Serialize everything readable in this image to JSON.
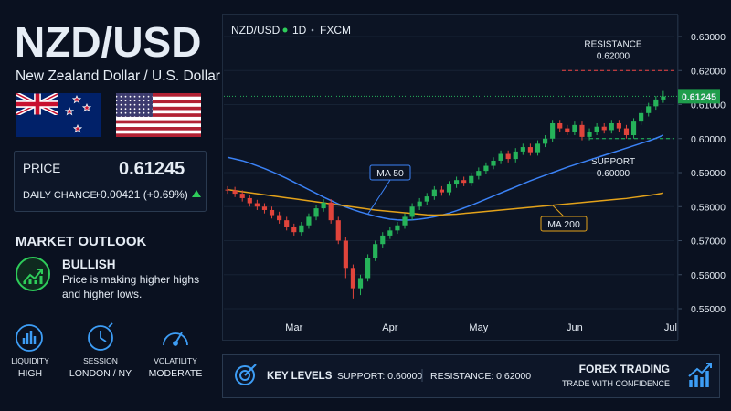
{
  "header": {
    "title": "NZD/USD",
    "subtitle": "New Zealand Dollar / U.S. Dollar"
  },
  "price_box": {
    "price_label": "PRICE",
    "change_label": "DAILY CHANGE",
    "change": "+0.00421 (+0.69%)"
  },
  "outlook": {
    "heading": "MARKET OUTLOOK",
    "status": "BULLISH",
    "description": [
      "Price is making higher highs",
      "and higher lows."
    ]
  },
  "indicators": [
    {
      "label": "LIQUIDITY",
      "value": "HIGH"
    },
    {
      "label": "SESSION",
      "value": "LONDON / NY"
    },
    {
      "label": "VOLATILITY",
      "value": "MODERATE"
    }
  ],
  "key_levels": {
    "heading": "KEY LEVELS",
    "support": "SUPPORT: 0.60000",
    "resistance": "RESISTANCE: 0.62000"
  },
  "brand": {
    "title": "FOREX TRADING",
    "tagline": "TRADE WITH CONFIDENCE"
  },
  "chart_data": {
    "type": "candlestick",
    "symbol": "NZD/USD",
    "interval": "1D",
    "source": "FXCM",
    "categories": [
      null,
      null,
      null,
      null,
      null,
      null,
      null,
      null,
      null,
      "Mar",
      null,
      null,
      null,
      null,
      null,
      null,
      null,
      null,
      null,
      null,
      null,
      null,
      "Apr",
      null,
      null,
      null,
      null,
      null,
      null,
      null,
      null,
      null,
      null,
      null,
      "May",
      null,
      null,
      null,
      null,
      null,
      null,
      null,
      null,
      null,
      null,
      null,
      null,
      "Jun",
      null,
      null,
      null,
      null,
      null,
      null,
      null,
      null,
      null,
      null,
      null,
      null,
      "Jul"
    ],
    "open": [
      0.585,
      0.5848,
      0.5838,
      0.5825,
      0.581,
      0.58,
      0.579,
      0.5775,
      0.576,
      0.574,
      0.5725,
      0.5745,
      0.577,
      0.5795,
      0.5812,
      0.576,
      0.57,
      0.562,
      0.556,
      0.559,
      0.565,
      0.569,
      0.5715,
      0.573,
      0.5745,
      0.577,
      0.58,
      0.5815,
      0.583,
      0.585,
      0.5842,
      0.5865,
      0.5878,
      0.587,
      0.589,
      0.5905,
      0.592,
      0.5935,
      0.5955,
      0.594,
      0.5962,
      0.5975,
      0.596,
      0.5985,
      0.6,
      0.6045,
      0.603,
      0.602,
      0.604,
      0.6005,
      0.602,
      0.6035,
      0.6025,
      0.6045,
      0.603,
      0.601,
      0.605,
      0.6075,
      0.6095,
      0.6115,
      null
    ],
    "high": [
      0.586,
      0.5858,
      0.5848,
      0.5835,
      0.582,
      0.581,
      0.58,
      0.5785,
      0.577,
      0.575,
      0.5755,
      0.578,
      0.5805,
      0.5822,
      0.5822,
      0.577,
      0.571,
      0.563,
      0.56,
      0.566,
      0.57,
      0.5725,
      0.574,
      0.5755,
      0.578,
      0.581,
      0.5825,
      0.584,
      0.586,
      0.586,
      0.5875,
      0.5888,
      0.5888,
      0.59,
      0.5915,
      0.593,
      0.5945,
      0.5965,
      0.5965,
      0.5972,
      0.5985,
      0.5985,
      0.5995,
      0.601,
      0.6055,
      0.6055,
      0.604,
      0.605,
      0.605,
      0.603,
      0.6045,
      0.6045,
      0.6055,
      0.6055,
      0.604,
      0.606,
      0.6085,
      0.6105,
      0.6125,
      0.614,
      null
    ],
    "low": [
      0.5838,
      0.5828,
      0.5815,
      0.58,
      0.579,
      0.578,
      0.5765,
      0.575,
      0.573,
      0.5715,
      0.5715,
      0.5735,
      0.576,
      0.5785,
      0.575,
      0.569,
      0.559,
      0.553,
      0.554,
      0.558,
      0.564,
      0.568,
      0.5705,
      0.572,
      0.5735,
      0.576,
      0.579,
      0.5805,
      0.582,
      0.5832,
      0.5832,
      0.5855,
      0.586,
      0.586,
      0.588,
      0.5895,
      0.591,
      0.5925,
      0.593,
      0.593,
      0.5952,
      0.595,
      0.595,
      0.5975,
      0.599,
      0.602,
      0.601,
      0.601,
      0.5995,
      0.5995,
      0.601,
      0.6015,
      0.6015,
      0.602,
      0.6,
      0.6,
      0.604,
      0.6065,
      0.6085,
      0.6105,
      null
    ],
    "close": [
      0.5848,
      0.5838,
      0.5825,
      0.581,
      0.58,
      0.579,
      0.5775,
      0.576,
      0.574,
      0.5725,
      0.5745,
      0.577,
      0.5795,
      0.5812,
      0.576,
      0.57,
      0.562,
      0.556,
      0.559,
      0.565,
      0.569,
      0.5715,
      0.573,
      0.5745,
      0.577,
      0.58,
      0.5815,
      0.583,
      0.585,
      0.5842,
      0.5865,
      0.5878,
      0.587,
      0.589,
      0.5905,
      0.592,
      0.5935,
      0.5955,
      0.594,
      0.5962,
      0.5975,
      0.596,
      0.5985,
      0.6,
      0.6045,
      0.603,
      0.602,
      0.604,
      0.6005,
      0.602,
      0.6035,
      0.6025,
      0.6045,
      0.603,
      0.601,
      0.605,
      0.6075,
      0.6095,
      0.6115,
      0.6124,
      null
    ],
    "up_color": "#26b35a",
    "down_color": "#e0443b",
    "series": [
      {
        "name": "MA 50",
        "color": "#3b82f6",
        "values": [
          0.5945,
          0.594,
          0.5935,
          0.5928,
          0.592,
          0.5912,
          0.5903,
          0.5893,
          0.5883,
          0.5872,
          0.5861,
          0.585,
          0.5839,
          0.5828,
          0.5818,
          0.5808,
          0.5799,
          0.5791,
          0.5784,
          0.5778,
          0.5772,
          0.5767,
          0.5763,
          0.5761,
          0.576,
          0.5761,
          0.5763,
          0.5766,
          0.577,
          0.5775,
          0.5781,
          0.5788,
          0.5796,
          0.5804,
          0.5813,
          0.5822,
          0.5831,
          0.584,
          0.5849,
          0.5858,
          0.5867,
          0.5876,
          0.5884,
          0.5892,
          0.59,
          0.5908,
          0.5916,
          0.5923,
          0.593,
          0.5937,
          0.5944,
          0.5951,
          0.5958,
          0.5965,
          0.5972,
          0.5979,
          0.5986,
          0.5993,
          0.6001,
          0.601,
          null
        ]
      },
      {
        "name": "MA 200",
        "color": "#e3a21a",
        "values": [
          0.585,
          0.5847,
          0.5844,
          0.5841,
          0.5838,
          0.5835,
          0.5832,
          0.5829,
          0.5826,
          0.5823,
          0.582,
          0.5817,
          0.5814,
          0.5811,
          0.5808,
          0.5805,
          0.5802,
          0.5799,
          0.5796,
          0.5793,
          0.579,
          0.5788,
          0.5786,
          0.5784,
          0.5782,
          0.578,
          0.5778,
          0.5776,
          0.5775,
          0.5776,
          0.5777,
          0.5778,
          0.578,
          0.5782,
          0.5784,
          0.5786,
          0.5788,
          0.579,
          0.5792,
          0.5794,
          0.5796,
          0.5798,
          0.58,
          0.5802,
          0.5804,
          0.5806,
          0.5808,
          0.581,
          0.5812,
          0.5814,
          0.5816,
          0.5818,
          0.582,
          0.5822,
          0.5824,
          0.5827,
          0.583,
          0.5833,
          0.5836,
          0.584,
          null
        ]
      }
    ],
    "ylim": [
      0.55,
      0.63
    ],
    "yticks": [
      {
        "value": 0.55,
        "label": "0.55000"
      },
      {
        "value": 0.56,
        "label": "0.56000"
      },
      {
        "value": 0.57,
        "label": "0.57000"
      },
      {
        "value": 0.58,
        "label": "0.58000"
      },
      {
        "value": 0.59,
        "label": "0.59000"
      },
      {
        "value": 0.6,
        "label": "0.60000"
      },
      {
        "value": 0.61,
        "label": "0.61000"
      },
      {
        "value": 0.62,
        "label": "0.62000"
      },
      {
        "value": 0.63,
        "label": "0.63000"
      }
    ],
    "grid": true,
    "current_price": {
      "value": 0.61245,
      "label": "0.61245"
    },
    "annotations": [
      {
        "label": "RESISTANCE",
        "value": 0.62,
        "value_label": "0.62000",
        "color": "#ef4444"
      },
      {
        "label": "SUPPORT",
        "value": 0.6,
        "value_label": "0.60000",
        "color": "#22c55e"
      }
    ]
  }
}
